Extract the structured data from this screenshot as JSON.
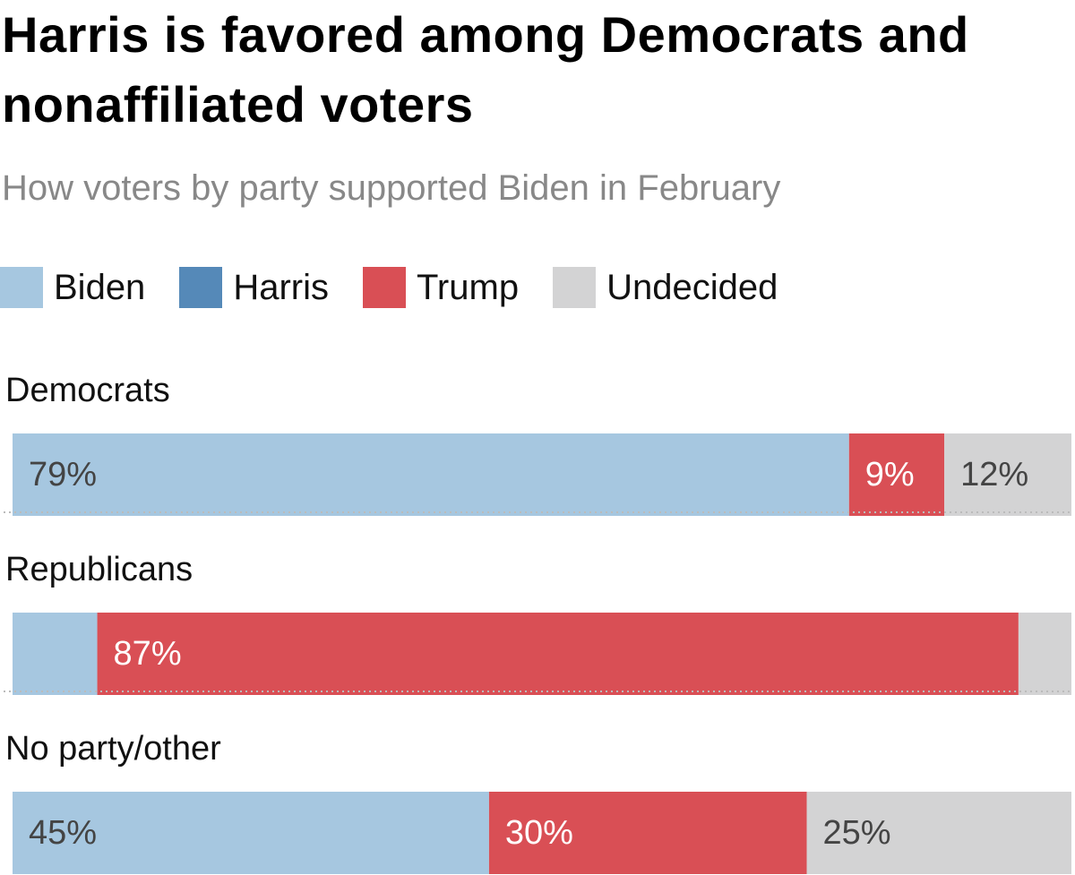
{
  "chart_data": {
    "type": "stacked-bar-horizontal",
    "title": "Harris is favored among Democrats and nonaffiliated voters",
    "subtitle": "How voters by party supported Biden in February",
    "categories": [
      "Democrats",
      "Republicans",
      "No party/other"
    ],
    "series": [
      {
        "name": "Biden",
        "color": "#a6c7e0",
        "values": [
          79,
          8,
          45
        ],
        "value_labels": [
          "79%",
          null,
          "45%"
        ]
      },
      {
        "name": "Harris",
        "color": "#5589b8",
        "values": [
          0,
          0,
          0
        ],
        "value_labels": [
          null,
          null,
          null
        ]
      },
      {
        "name": "Trump",
        "color": "#d94f55",
        "values": [
          9,
          87,
          30
        ],
        "value_labels": [
          "9%",
          "87%",
          "30%"
        ]
      },
      {
        "name": "Undecided",
        "color": "#d3d3d4",
        "values": [
          12,
          5,
          25
        ],
        "value_labels": [
          "12%",
          null,
          "25%"
        ]
      }
    ],
    "xlim": [
      0,
      100
    ]
  }
}
